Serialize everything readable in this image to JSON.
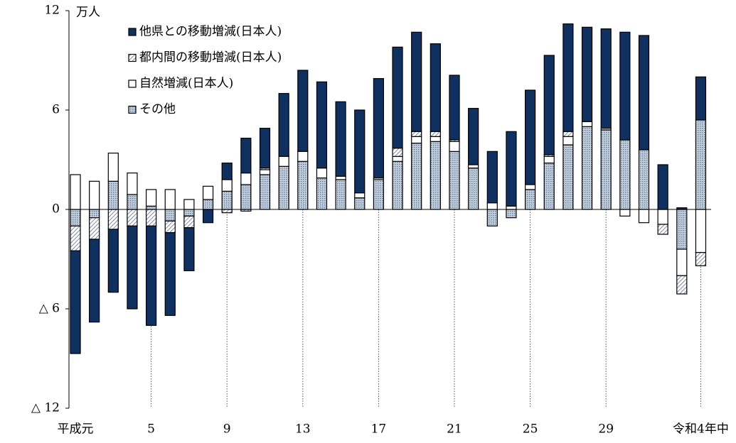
{
  "chart_data": {
    "type": "stacked-bar",
    "y_label": "万人",
    "categories": [
      "平成元",
      null,
      null,
      null,
      "5",
      null,
      null,
      null,
      "9",
      null,
      null,
      null,
      "13",
      null,
      null,
      null,
      "17",
      null,
      null,
      null,
      "21",
      null,
      null,
      null,
      "25",
      null,
      null,
      null,
      "29",
      null,
      null,
      null,
      null,
      "令和4年中"
    ],
    "series": [
      {
        "name": "他県との移動増減(日本人)",
        "color": "#10305f",
        "pattern": "solid",
        "values": [
          -6.2,
          -5.0,
          -3.8,
          -5.0,
          -6.0,
          -5.0,
          -2.6,
          -0.8,
          1.0,
          2.1,
          2.4,
          3.8,
          4.9,
          5.2,
          4.5,
          5.0,
          6.0,
          6.1,
          6.0,
          5.3,
          3.9,
          3.4,
          3.1,
          4.5,
          5.7,
          6.0,
          6.5,
          5.7,
          6.0,
          6.5,
          6.9,
          2.7,
          0.1,
          2.6
        ]
      },
      {
        "name": "都内間の移動増減(日本人)",
        "color": "#8a9bb3",
        "pattern": "hatch",
        "values": [
          -1.5,
          -1.3,
          -1.2,
          -1.0,
          -1.0,
          -0.7,
          -0.7,
          0,
          -0.2,
          -0.1,
          0.1,
          0,
          0,
          0,
          0,
          0,
          0,
          0.5,
          0.3,
          0.3,
          0.1,
          0,
          0,
          0,
          0,
          0.1,
          0.3,
          0,
          0,
          0,
          0,
          -0.6,
          -1.1,
          -0.8
        ]
      },
      {
        "name": "自然増減(日本人)",
        "color": "#ffffff",
        "pattern": "solid",
        "values": [
          2.1,
          1.7,
          1.7,
          1.3,
          1.0,
          1.2,
          0.6,
          0.8,
          0.7,
          0.7,
          0.3,
          0.6,
          0.6,
          0.6,
          0.2,
          0.3,
          0.1,
          0.3,
          0.4,
          0.3,
          0.6,
          0.2,
          0.4,
          0.2,
          0.3,
          0.4,
          0.5,
          0.3,
          0.1,
          -0.4,
          -0.8,
          -0.9,
          -1.6,
          -2.6
        ]
      },
      {
        "name": "その他",
        "color": "#9fb0c8",
        "pattern": "dots",
        "values": [
          -1.0,
          -0.5,
          1.7,
          0.9,
          0.2,
          -0.7,
          -0.4,
          0.6,
          1.1,
          1.5,
          2.1,
          2.6,
          2.9,
          1.9,
          1.8,
          0.7,
          1.8,
          2.9,
          4.0,
          4.1,
          3.5,
          2.5,
          -1.0,
          -0.5,
          1.2,
          2.8,
          3.9,
          5.0,
          4.8,
          4.2,
          3.6,
          0,
          -2.4,
          5.4
        ]
      }
    ],
    "ylim": [
      -12,
      12
    ],
    "yticks": [
      12,
      6,
      0,
      {
        "value": -6,
        "label": "△ 6"
      },
      {
        "value": -12,
        "label": "△ 12"
      }
    ]
  }
}
